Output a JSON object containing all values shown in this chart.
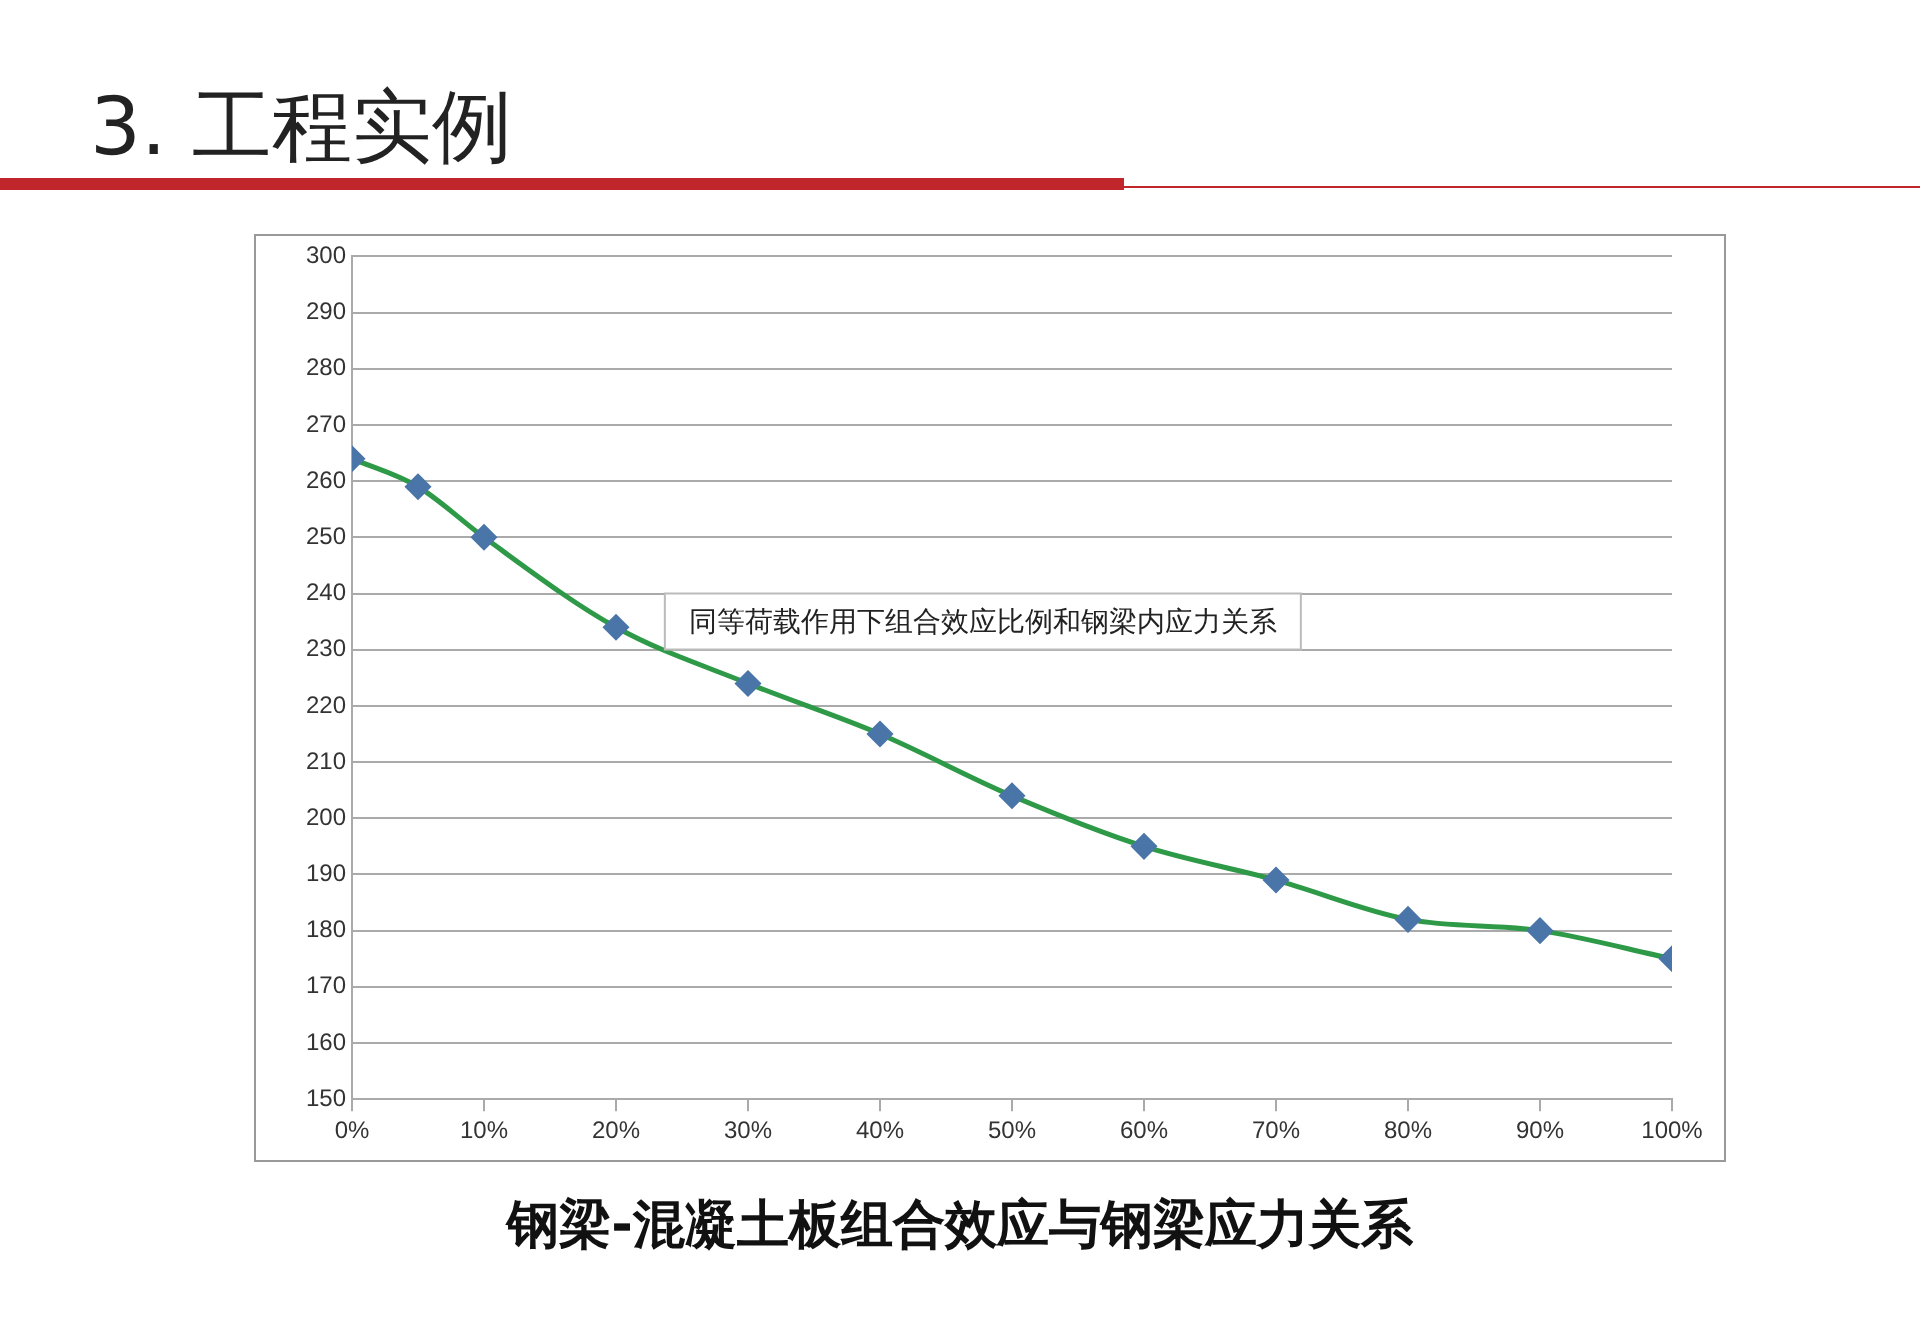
{
  "chart_data": {
    "type": "line",
    "title": "3. 工程实例",
    "x": [
      0,
      5,
      10,
      20,
      30,
      40,
      50,
      60,
      70,
      80,
      90,
      100
    ],
    "series": [
      {
        "color": "#2e9a48",
        "colors": [
          "#4a75a8",
          "#4a75a8",
          "#4a75a8",
          "#4a75a8",
          "#4a75a8",
          "#4a75a8",
          "#4a75a8",
          "#4a75a8",
          "#4a75a8",
          "#4a75a8",
          "#4a75a8",
          "#4a75a8"
        ],
        "values": [
          264,
          259,
          250,
          234,
          224,
          215,
          204,
          195,
          189,
          182,
          180,
          175
        ]
      }
    ],
    "xlim": [
      0,
      100
    ],
    "xticks": [
      {
        "value": 0,
        "label": "0%"
      },
      {
        "value": 10,
        "label": "10%"
      },
      {
        "value": 20,
        "label": "20%"
      },
      {
        "value": 30,
        "label": "30%"
      },
      {
        "value": 40,
        "label": "40%"
      },
      {
        "value": 50,
        "label": "50%"
      },
      {
        "value": 60,
        "label": "60%"
      },
      {
        "value": 70,
        "label": "70%"
      },
      {
        "value": 80,
        "label": "80%"
      },
      {
        "value": 90,
        "label": "90%"
      },
      {
        "value": 100,
        "label": "100%"
      }
    ],
    "ylim": [
      150,
      300
    ],
    "yticks": [
      150,
      160,
      170,
      180,
      190,
      200,
      210,
      220,
      230,
      240,
      250,
      260,
      270,
      280,
      290,
      300
    ],
    "grid": "y",
    "legend": false,
    "marker": "diamond",
    "line_style": "solid",
    "annotations": [
      "同等荷载作用下组合效应比例和钢梁内应力关系",
      "钢梁-混凝土板组合效应与钢梁应力关系"
    ]
  }
}
